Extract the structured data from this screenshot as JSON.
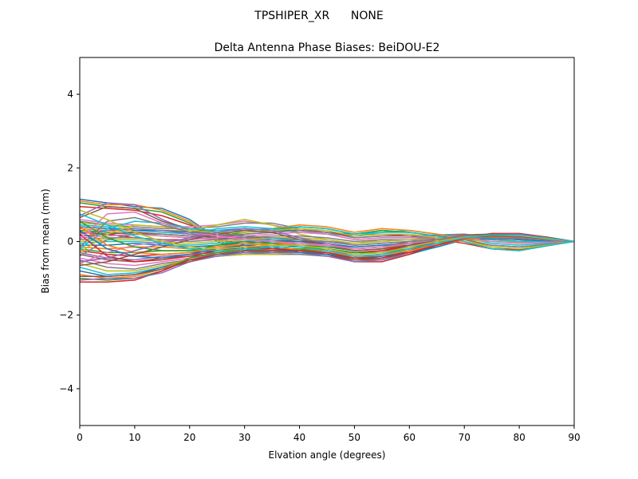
{
  "figure": {
    "suptitle": "TPSHIPER_XR      NONE"
  },
  "chart_data": {
    "type": "line",
    "title": "Delta Antenna Phase Biases: BeiDOU-E2",
    "xlabel": "Elvation angle (degrees)",
    "ylabel": "Bias from mean (mm)",
    "xlim": [
      0,
      90
    ],
    "ylim": [
      -5,
      5
    ],
    "xticks": [
      0,
      10,
      20,
      30,
      40,
      50,
      60,
      70,
      80,
      90
    ],
    "xtick_labels": [
      "0",
      "10",
      "20",
      "30",
      "40",
      "50",
      "60",
      "70",
      "80",
      "90"
    ],
    "yticks": [
      -4,
      -2,
      0,
      2,
      4
    ],
    "ytick_labels": [
      "−4",
      "−2",
      "0",
      "2",
      "4"
    ],
    "grid": false,
    "legend": "none",
    "colors": [
      "#1f77b4",
      "#ff7f0e",
      "#2ca02c",
      "#d62728",
      "#9467bd",
      "#8c564b",
      "#e377c2",
      "#7f7f7f",
      "#bcbd22",
      "#17becf"
    ],
    "x": [
      0,
      5,
      10,
      15,
      20,
      25,
      30,
      35,
      40,
      45,
      50,
      55,
      60,
      65,
      70,
      75,
      80,
      85,
      90
    ],
    "series": [
      {
        "values": [
          1.15,
          1.05,
          0.95,
          0.9,
          0.6,
          0.1,
          -0.2,
          -0.3,
          -0.25,
          -0.2,
          -0.35,
          -0.3,
          -0.1,
          0.05,
          0.15,
          0.2,
          0.18,
          0.1,
          0.0
        ]
      },
      {
        "values": [
          1.1,
          1.0,
          1.0,
          0.85,
          0.55,
          0.05,
          -0.25,
          -0.3,
          -0.2,
          -0.25,
          -0.4,
          -0.35,
          -0.2,
          0.0,
          0.1,
          0.15,
          0.15,
          0.08,
          0.0
        ]
      },
      {
        "values": [
          1.05,
          0.95,
          0.9,
          0.8,
          0.5,
          0.0,
          -0.3,
          -0.35,
          -0.3,
          -0.3,
          -0.45,
          -0.4,
          -0.25,
          -0.05,
          0.1,
          0.1,
          0.12,
          0.06,
          0.0
        ]
      },
      {
        "values": [
          0.95,
          0.9,
          0.85,
          0.7,
          0.45,
          0.1,
          -0.1,
          -0.2,
          -0.2,
          -0.2,
          -0.3,
          -0.25,
          -0.1,
          0.05,
          0.15,
          0.18,
          0.16,
          0.08,
          0.0
        ]
      },
      {
        "values": [
          0.7,
          1.05,
          1.0,
          0.6,
          0.3,
          0.2,
          0.1,
          0.0,
          -0.1,
          -0.15,
          -0.25,
          -0.2,
          -0.05,
          0.1,
          0.15,
          0.15,
          0.14,
          0.07,
          0.0
        ]
      },
      {
        "values": [
          0.65,
          0.95,
          0.9,
          0.55,
          0.35,
          0.25,
          0.15,
          0.05,
          0.0,
          -0.1,
          -0.2,
          -0.15,
          0.0,
          0.1,
          0.18,
          0.2,
          0.18,
          0.1,
          0.0
        ]
      },
      {
        "values": [
          0.6,
          0.5,
          0.45,
          0.4,
          0.4,
          0.45,
          0.55,
          0.45,
          0.3,
          0.2,
          0.05,
          0.1,
          0.1,
          0.15,
          0.2,
          0.1,
          0.05,
          0.02,
          0.0
        ]
      },
      {
        "values": [
          0.55,
          0.45,
          0.4,
          0.35,
          0.35,
          0.4,
          0.5,
          0.5,
          0.35,
          0.25,
          0.1,
          0.15,
          0.15,
          0.18,
          0.2,
          0.12,
          0.06,
          0.03,
          0.0
        ]
      },
      {
        "values": [
          0.5,
          0.45,
          0.35,
          0.3,
          0.3,
          0.45,
          0.6,
          0.45,
          0.2,
          0.05,
          -0.05,
          0.05,
          0.05,
          0.1,
          0.15,
          0.05,
          0.0,
          0.0,
          0.0
        ]
      },
      {
        "values": [
          0.45,
          0.4,
          0.3,
          0.25,
          0.2,
          0.35,
          0.4,
          0.35,
          0.25,
          0.2,
          0.15,
          0.25,
          0.3,
          0.2,
          0.1,
          -0.05,
          -0.1,
          -0.05,
          0.0
        ]
      },
      {
        "values": [
          0.4,
          0.35,
          0.3,
          0.3,
          0.25,
          0.3,
          0.35,
          0.3,
          0.3,
          0.25,
          0.2,
          0.3,
          0.25,
          0.15,
          0.05,
          -0.1,
          -0.15,
          -0.08,
          0.0
        ]
      },
      {
        "values": [
          0.35,
          0.3,
          0.25,
          0.2,
          0.15,
          0.2,
          0.3,
          0.35,
          0.45,
          0.4,
          0.25,
          0.35,
          0.3,
          0.2,
          0.05,
          -0.15,
          -0.2,
          -0.1,
          0.0
        ]
      },
      {
        "values": [
          0.3,
          0.25,
          0.2,
          0.15,
          0.1,
          0.15,
          0.25,
          0.3,
          0.4,
          0.35,
          0.2,
          0.3,
          0.25,
          0.15,
          0.0,
          -0.2,
          -0.25,
          -0.12,
          0.0
        ]
      },
      {
        "values": [
          0.25,
          0.2,
          0.1,
          0.05,
          0.05,
          0.1,
          0.2,
          0.25,
          0.3,
          0.25,
          0.15,
          0.2,
          0.15,
          0.05,
          -0.05,
          -0.2,
          -0.22,
          -0.1,
          0.0
        ]
      },
      {
        "values": [
          0.2,
          0.3,
          0.35,
          0.3,
          0.2,
          0.15,
          0.1,
          0.05,
          0.05,
          0.0,
          -0.05,
          0.0,
          0.05,
          0.1,
          0.1,
          0.05,
          0.0,
          0.0,
          0.0
        ]
      },
      {
        "values": [
          0.15,
          0.2,
          0.25,
          0.2,
          0.15,
          0.1,
          0.05,
          0.0,
          0.0,
          0.0,
          -0.1,
          -0.05,
          0.0,
          0.05,
          0.1,
          0.1,
          0.05,
          0.02,
          0.0
        ]
      },
      {
        "values": [
          0.1,
          0.15,
          0.2,
          0.15,
          0.1,
          0.05,
          0.0,
          -0.05,
          -0.1,
          -0.1,
          -0.15,
          -0.1,
          -0.05,
          0.05,
          0.1,
          0.12,
          0.1,
          0.05,
          0.0
        ]
      },
      {
        "values": [
          0.05,
          0.1,
          0.1,
          0.05,
          0.0,
          0.05,
          0.1,
          0.15,
          0.15,
          0.1,
          0.0,
          0.05,
          0.05,
          0.05,
          0.05,
          0.0,
          -0.05,
          -0.02,
          0.0
        ]
      },
      {
        "values": [
          0.0,
          0.05,
          0.05,
          0.0,
          -0.05,
          0.0,
          0.05,
          0.1,
          0.1,
          0.05,
          -0.05,
          0.0,
          0.05,
          0.05,
          0.05,
          0.0,
          -0.02,
          0.0,
          0.0
        ]
      },
      {
        "values": [
          -0.05,
          0.0,
          0.0,
          -0.05,
          -0.1,
          -0.05,
          0.0,
          0.05,
          0.05,
          0.0,
          -0.1,
          -0.05,
          0.0,
          0.05,
          0.08,
          0.05,
          0.0,
          0.0,
          0.0
        ]
      },
      {
        "values": [
          -0.1,
          -0.1,
          -0.05,
          -0.1,
          -0.15,
          -0.1,
          -0.05,
          0.0,
          0.0,
          -0.05,
          -0.15,
          -0.1,
          -0.05,
          0.0,
          0.05,
          0.08,
          0.05,
          0.02,
          0.0
        ]
      },
      {
        "values": [
          -0.15,
          -0.2,
          -0.15,
          -0.15,
          -0.2,
          -0.15,
          -0.1,
          -0.05,
          -0.05,
          -0.1,
          -0.2,
          -0.15,
          -0.1,
          0.0,
          0.1,
          0.1,
          0.08,
          0.04,
          0.0
        ]
      },
      {
        "values": [
          -0.2,
          -0.3,
          -0.3,
          -0.25,
          -0.25,
          -0.2,
          -0.15,
          -0.1,
          -0.1,
          -0.15,
          -0.25,
          -0.2,
          -0.1,
          0.05,
          0.12,
          0.12,
          0.1,
          0.05,
          0.0
        ]
      },
      {
        "values": [
          -0.25,
          -0.35,
          -0.4,
          -0.35,
          -0.3,
          -0.25,
          -0.2,
          -0.15,
          -0.15,
          -0.2,
          -0.3,
          -0.25,
          -0.15,
          0.0,
          0.12,
          0.15,
          0.12,
          0.06,
          0.0
        ]
      },
      {
        "values": [
          -0.3,
          -0.45,
          -0.5,
          -0.4,
          -0.35,
          -0.3,
          -0.25,
          -0.2,
          -0.2,
          -0.25,
          -0.35,
          -0.3,
          -0.15,
          0.05,
          0.15,
          0.18,
          0.15,
          0.08,
          0.0
        ]
      },
      {
        "values": [
          -0.35,
          -0.5,
          -0.55,
          -0.45,
          -0.4,
          -0.35,
          -0.3,
          -0.25,
          -0.25,
          -0.3,
          -0.4,
          -0.35,
          -0.2,
          0.0,
          0.15,
          0.2,
          0.18,
          0.1,
          0.0
        ]
      },
      {
        "values": [
          -0.45,
          -0.6,
          -0.65,
          -0.55,
          -0.45,
          -0.35,
          -0.3,
          -0.3,
          -0.3,
          -0.35,
          -0.45,
          -0.4,
          -0.25,
          -0.05,
          0.12,
          0.18,
          0.16,
          0.09,
          0.0
        ]
      },
      {
        "values": [
          -0.5,
          -0.7,
          -0.75,
          -0.6,
          -0.5,
          -0.4,
          -0.35,
          -0.35,
          -0.35,
          -0.4,
          -0.5,
          -0.45,
          -0.3,
          -0.1,
          0.1,
          0.2,
          0.2,
          0.1,
          0.0
        ]
      },
      {
        "values": [
          -0.6,
          -0.8,
          -0.8,
          -0.65,
          -0.5,
          -0.4,
          -0.35,
          -0.35,
          -0.3,
          -0.35,
          -0.5,
          -0.45,
          -0.3,
          -0.1,
          0.1,
          0.2,
          0.18,
          0.1,
          0.0
        ]
      },
      {
        "values": [
          -0.7,
          -0.9,
          -0.85,
          -0.7,
          -0.5,
          -0.4,
          -0.3,
          -0.3,
          -0.3,
          -0.35,
          -0.5,
          -0.5,
          -0.35,
          -0.15,
          0.05,
          0.18,
          0.2,
          0.12,
          0.0
        ]
      },
      {
        "values": [
          -0.8,
          -0.95,
          -0.9,
          -0.7,
          -0.5,
          -0.35,
          -0.3,
          -0.3,
          -0.25,
          -0.3,
          -0.45,
          -0.45,
          -0.3,
          -0.1,
          0.08,
          0.2,
          0.2,
          0.1,
          0.0
        ]
      },
      {
        "values": [
          -0.9,
          -1.0,
          -0.95,
          -0.75,
          -0.45,
          -0.3,
          -0.25,
          -0.25,
          -0.2,
          -0.25,
          -0.4,
          -0.4,
          -0.25,
          -0.05,
          0.1,
          0.2,
          0.18,
          0.1,
          0.0
        ]
      },
      {
        "values": [
          -1.0,
          -1.05,
          -1.0,
          -0.8,
          -0.45,
          -0.3,
          -0.2,
          -0.2,
          -0.2,
          -0.3,
          -0.5,
          -0.5,
          -0.3,
          -0.1,
          0.1,
          0.2,
          0.2,
          0.12,
          0.0
        ]
      },
      {
        "values": [
          -1.1,
          -1.1,
          -1.05,
          -0.8,
          -0.5,
          -0.35,
          -0.25,
          -0.25,
          -0.25,
          -0.35,
          -0.55,
          -0.55,
          -0.35,
          -0.1,
          0.1,
          0.22,
          0.22,
          0.12,
          0.0
        ]
      },
      {
        "values": [
          -1.05,
          -1.0,
          -1.0,
          -0.85,
          -0.55,
          -0.4,
          -0.3,
          -0.3,
          -0.3,
          -0.4,
          -0.55,
          -0.5,
          -0.3,
          -0.05,
          0.12,
          0.2,
          0.2,
          0.1,
          0.0
        ]
      },
      {
        "values": [
          -0.95,
          -0.95,
          -0.9,
          -0.75,
          -0.55,
          -0.35,
          -0.25,
          -0.25,
          -0.25,
          -0.35,
          -0.5,
          -0.45,
          -0.25,
          0.0,
          0.15,
          0.2,
          0.18,
          0.1,
          0.0
        ]
      },
      {
        "values": [
          -0.6,
          -0.3,
          -0.1,
          0.0,
          0.05,
          0.1,
          0.15,
          0.2,
          0.25,
          0.2,
          0.05,
          0.1,
          0.1,
          0.1,
          0.1,
          0.0,
          -0.05,
          -0.02,
          0.0
        ]
      },
      {
        "values": [
          -0.4,
          0.05,
          0.2,
          0.2,
          0.15,
          0.15,
          0.2,
          0.25,
          0.3,
          0.25,
          0.1,
          0.15,
          0.15,
          0.1,
          0.05,
          -0.1,
          -0.15,
          -0.08,
          0.0
        ]
      },
      {
        "values": [
          -0.3,
          0.2,
          0.45,
          0.4,
          0.3,
          0.25,
          0.25,
          0.3,
          0.35,
          0.3,
          0.15,
          0.2,
          0.2,
          0.1,
          0.0,
          -0.15,
          -0.2,
          -0.1,
          0.0
        ]
      },
      {
        "values": [
          -0.2,
          0.35,
          0.55,
          0.5,
          0.35,
          0.3,
          0.3,
          0.35,
          0.4,
          0.35,
          0.2,
          0.25,
          0.25,
          0.15,
          0.0,
          -0.2,
          -0.25,
          -0.12,
          0.0
        ]
      },
      {
        "values": [
          0.3,
          -0.2,
          -0.4,
          -0.45,
          -0.35,
          -0.2,
          -0.1,
          -0.15,
          -0.3,
          -0.35,
          -0.45,
          -0.4,
          -0.3,
          -0.15,
          0.05,
          0.15,
          0.15,
          0.08,
          0.0
        ]
      },
      {
        "values": [
          0.4,
          -0.1,
          -0.3,
          -0.35,
          -0.3,
          -0.15,
          -0.05,
          -0.1,
          -0.25,
          -0.3,
          -0.4,
          -0.35,
          -0.25,
          -0.1,
          0.05,
          0.12,
          0.12,
          0.06,
          0.0
        ]
      },
      {
        "values": [
          0.55,
          0.1,
          -0.15,
          -0.25,
          -0.25,
          -0.1,
          0.0,
          -0.05,
          -0.15,
          -0.2,
          -0.3,
          -0.3,
          -0.2,
          -0.05,
          0.1,
          0.15,
          0.15,
          0.08,
          0.0
        ]
      },
      {
        "values": [
          0.2,
          -0.4,
          -0.55,
          -0.5,
          -0.4,
          -0.25,
          -0.15,
          -0.2,
          -0.25,
          -0.3,
          -0.45,
          -0.45,
          -0.3,
          -0.1,
          0.08,
          0.18,
          0.18,
          0.1,
          0.0
        ]
      },
      {
        "values": [
          -0.55,
          -0.45,
          -0.25,
          -0.05,
          0.1,
          0.25,
          0.35,
          0.3,
          0.1,
          -0.05,
          -0.2,
          -0.15,
          -0.05,
          0.05,
          0.15,
          0.15,
          0.12,
          0.06,
          0.0
        ]
      },
      {
        "values": [
          -0.65,
          -0.55,
          -0.35,
          -0.15,
          0.05,
          0.2,
          0.3,
          0.25,
          0.05,
          -0.1,
          -0.25,
          -0.2,
          -0.1,
          0.05,
          0.12,
          0.15,
          0.14,
          0.07,
          0.0
        ]
      },
      {
        "values": [
          0.05,
          0.75,
          0.8,
          0.5,
          0.25,
          0.15,
          0.05,
          0.0,
          -0.05,
          -0.1,
          -0.2,
          -0.15,
          -0.05,
          0.05,
          0.1,
          0.1,
          0.08,
          0.04,
          0.0
        ]
      },
      {
        "values": [
          -0.15,
          0.55,
          0.65,
          0.45,
          0.25,
          0.2,
          0.15,
          0.1,
          0.05,
          0.0,
          -0.1,
          -0.05,
          0.0,
          0.05,
          0.1,
          0.1,
          0.08,
          0.04,
          0.0
        ]
      },
      {
        "values": [
          0.85,
          0.6,
          0.25,
          0.0,
          -0.15,
          -0.2,
          -0.15,
          -0.1,
          -0.1,
          -0.2,
          -0.35,
          -0.3,
          -0.15,
          0.0,
          0.12,
          0.18,
          0.16,
          0.08,
          0.0
        ]
      },
      {
        "values": [
          0.75,
          0.45,
          0.15,
          -0.05,
          -0.2,
          -0.25,
          -0.2,
          -0.15,
          -0.15,
          -0.25,
          -0.4,
          -0.35,
          -0.2,
          -0.05,
          0.1,
          0.18,
          0.18,
          0.1,
          0.0
        ]
      }
    ]
  }
}
